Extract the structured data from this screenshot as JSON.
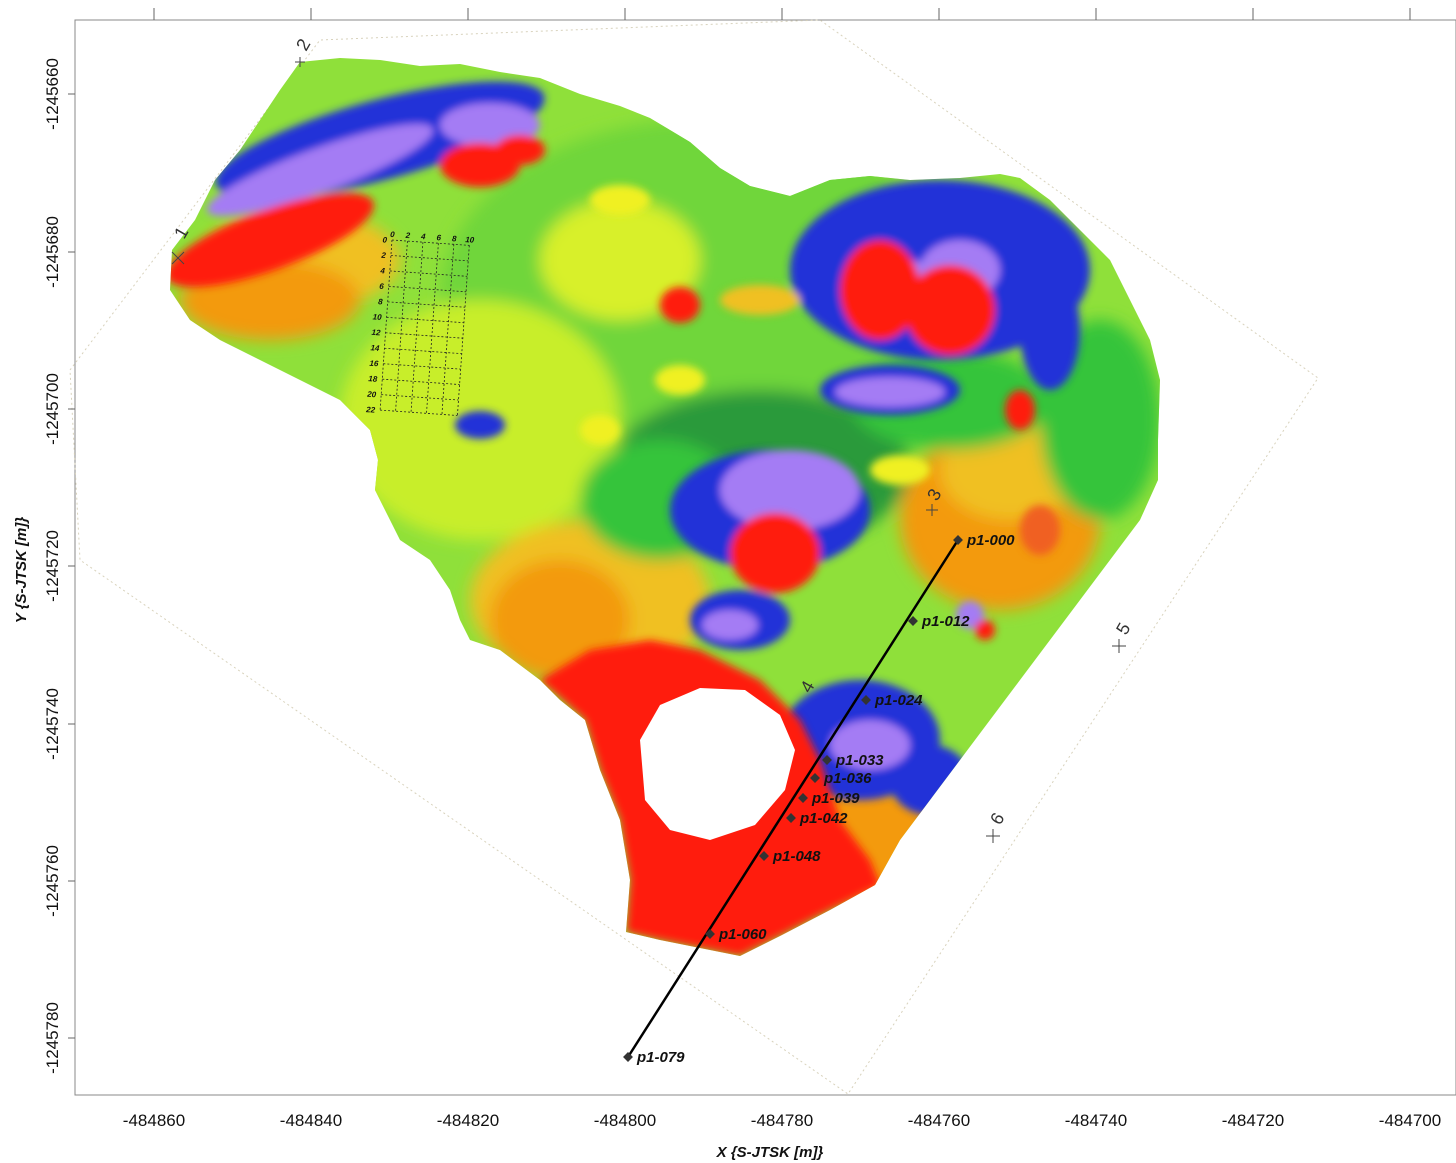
{
  "axes": {
    "x_title": "X {S-JTSK [m]}",
    "y_title": "Y {S-JTSK [m]}",
    "x_ticks": [
      "-484860",
      "-484840",
      "-484820",
      "-484800",
      "-484780",
      "-484760",
      "-484740",
      "-484720",
      "-484700"
    ],
    "y_ticks": [
      "-1245660",
      "-1245680",
      "-1245700",
      "-1245720",
      "-1245740",
      "-1245760",
      "-1245780"
    ]
  },
  "corner_markers": [
    "1",
    "2",
    "3",
    "4",
    "5",
    "6"
  ],
  "profile": {
    "name": "p1",
    "stations": [
      {
        "label": "p1-000"
      },
      {
        "label": "p1-012"
      },
      {
        "label": "p1-024"
      },
      {
        "label": "p1-033"
      },
      {
        "label": "p1-036"
      },
      {
        "label": "p1-039"
      },
      {
        "label": "p1-042"
      },
      {
        "label": "p1-048"
      },
      {
        "label": "p1-060"
      },
      {
        "label": "p1-079"
      }
    ]
  },
  "detail_grid": {
    "x_labels": [
      "0",
      "2",
      "4",
      "6",
      "8",
      "10"
    ],
    "y_labels": [
      "0",
      "2",
      "4",
      "6",
      "8",
      "10",
      "12",
      "14",
      "16",
      "18",
      "20",
      "22"
    ]
  },
  "colors": {
    "high": "#ff1a0a",
    "mid_high": "#f39a10",
    "mid": "#f0f020",
    "mid_low": "#8fe03a",
    "low": "#36c43a",
    "lower": "#2230d8",
    "lowest": "#a47cf4"
  }
}
